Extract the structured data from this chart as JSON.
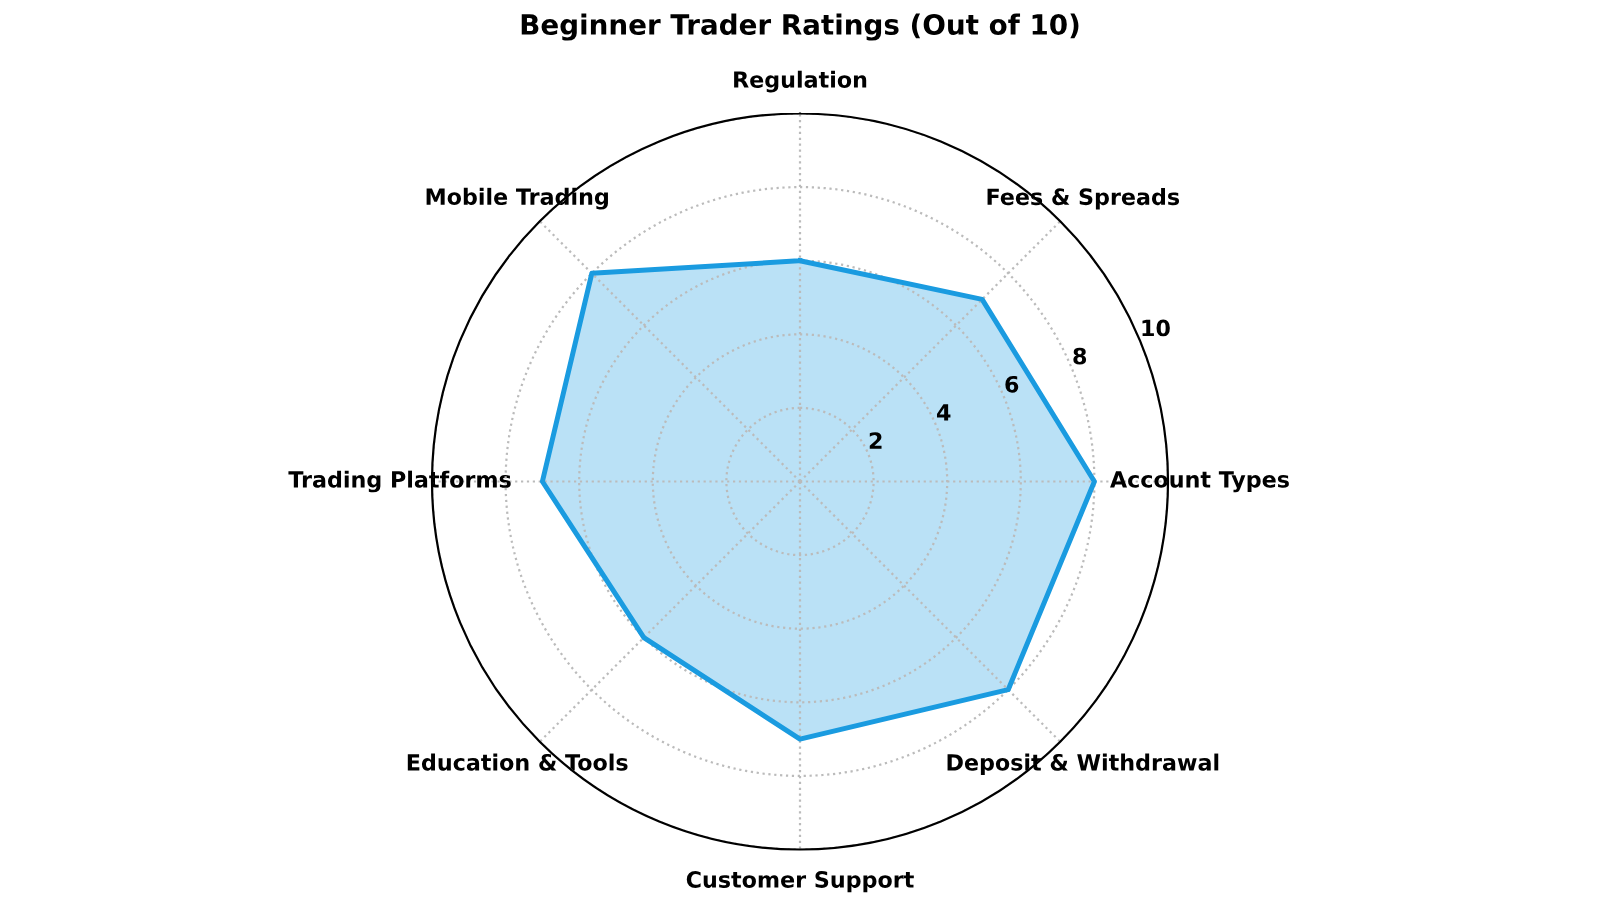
{
  "chart_data": {
    "type": "radar",
    "title": "Beginner Trader Ratings (Out of 10)",
    "categories": [
      "Regulation",
      "Fees & Spreads",
      "Account Types",
      "Deposit & Withdrawal",
      "Customer Support",
      "Education & Tools",
      "Trading Platforms",
      "Mobile Trading"
    ],
    "series": [
      {
        "color": "#1a9be0",
        "values": [
          6,
          7,
          8,
          8,
          7,
          6,
          7,
          8
        ]
      }
    ],
    "ylim": [
      0,
      10
    ],
    "yticks": [
      2,
      4,
      6,
      8,
      10
    ],
    "grid": true,
    "marker": "none",
    "line_style": "solid"
  }
}
